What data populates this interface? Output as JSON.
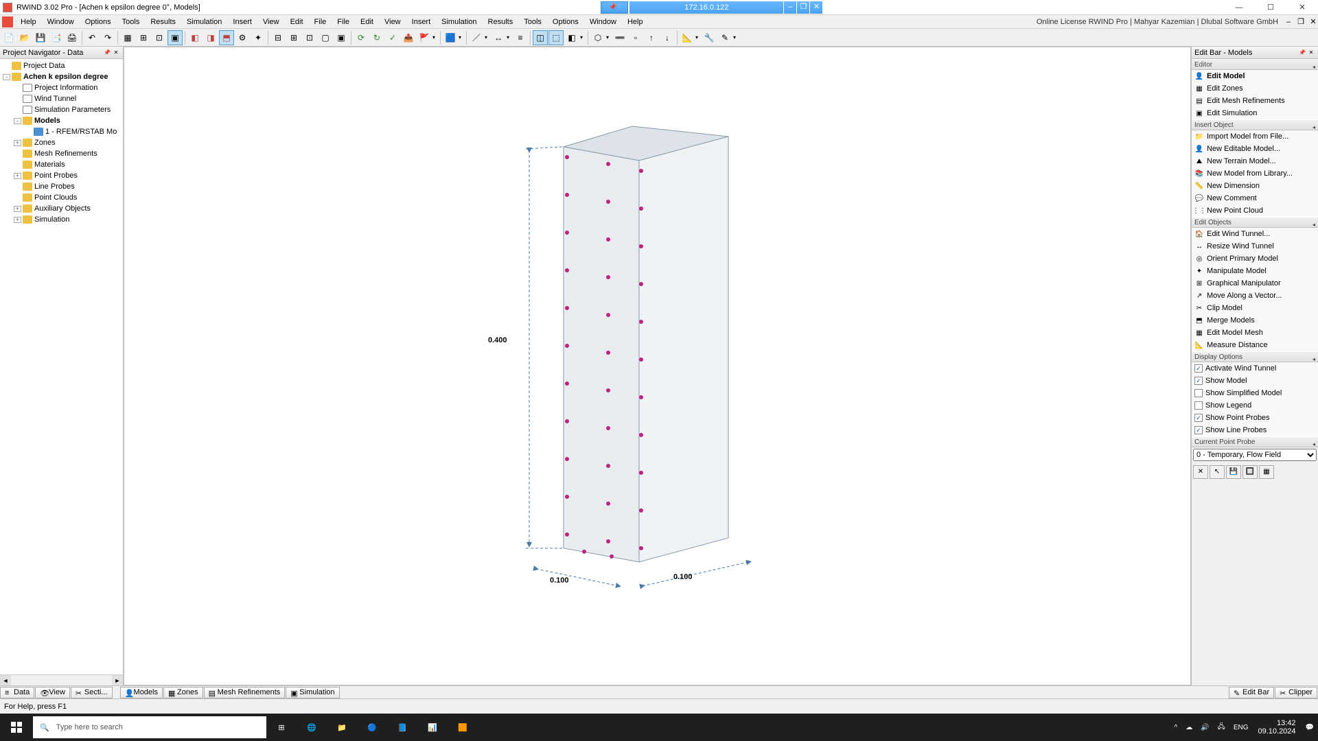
{
  "titlebar": {
    "title": "RWIND 3.02 Pro - [Achen  k epsilon degree 0°, Models]",
    "remote_ip": "172.16.0.122"
  },
  "menubar": {
    "items": [
      "File",
      "Edit",
      "View",
      "Insert",
      "Simulation",
      "Results",
      "Tools",
      "Options",
      "Window",
      "Help"
    ],
    "license": "Online License RWIND Pro | Mahyar Kazemian | Dlubal Software GmbH"
  },
  "leftpanel": {
    "header": "Project Navigator - Data",
    "tree": [
      {
        "indent": 0,
        "exp": "",
        "icon": "folder",
        "label": "Project Data"
      },
      {
        "indent": 0,
        "exp": "-",
        "icon": "folder",
        "label": "Achen  k epsilon degree",
        "bold": true
      },
      {
        "indent": 1,
        "exp": "",
        "icon": "doc",
        "label": "Project Information"
      },
      {
        "indent": 1,
        "exp": "",
        "icon": "doc",
        "label": "Wind Tunnel"
      },
      {
        "indent": 1,
        "exp": "",
        "icon": "doc",
        "label": "Simulation Parameters"
      },
      {
        "indent": 1,
        "exp": "-",
        "icon": "folder",
        "label": "Models",
        "bold": true
      },
      {
        "indent": 2,
        "exp": "",
        "icon": "blue",
        "label": "1 - RFEM/RSTAB Mo"
      },
      {
        "indent": 1,
        "exp": "+",
        "icon": "folder",
        "label": "Zones"
      },
      {
        "indent": 1,
        "exp": "",
        "icon": "folder",
        "label": "Mesh Refinements"
      },
      {
        "indent": 1,
        "exp": "",
        "icon": "folder",
        "label": "Materials"
      },
      {
        "indent": 1,
        "exp": "+",
        "icon": "folder",
        "label": "Point Probes"
      },
      {
        "indent": 1,
        "exp": "",
        "icon": "folder",
        "label": "Line Probes"
      },
      {
        "indent": 1,
        "exp": "",
        "icon": "folder",
        "label": "Point Clouds"
      },
      {
        "indent": 1,
        "exp": "+",
        "icon": "folder",
        "label": "Auxiliary Objects"
      },
      {
        "indent": 1,
        "exp": "+",
        "icon": "folder",
        "label": "Simulation"
      }
    ]
  },
  "rightpanel": {
    "header": "Edit Bar - Models",
    "sections": [
      {
        "title": "Editor",
        "items": [
          {
            "icon": "👤",
            "label": "Edit Model",
            "bold": true
          },
          {
            "icon": "▦",
            "label": "Edit Zones"
          },
          {
            "icon": "▤",
            "label": "Edit Mesh Refinements"
          },
          {
            "icon": "▣",
            "label": "Edit Simulation"
          }
        ]
      },
      {
        "title": "Insert Object",
        "items": [
          {
            "icon": "📁",
            "label": "Import Model from File..."
          },
          {
            "icon": "👤",
            "label": "New Editable Model..."
          },
          {
            "icon": "⛰",
            "label": "New Terrain Model..."
          },
          {
            "icon": "📚",
            "label": "New Model from Library..."
          },
          {
            "icon": "📏",
            "label": "New Dimension"
          },
          {
            "icon": "💬",
            "label": "New Comment"
          },
          {
            "icon": "⋮⋮",
            "label": "New Point Cloud"
          }
        ]
      },
      {
        "title": "Edit Objects",
        "items": [
          {
            "icon": "🏠",
            "label": "Edit Wind Tunnel..."
          },
          {
            "icon": "↔",
            "label": "Resize Wind Tunnel"
          },
          {
            "icon": "◎",
            "label": "Orient Primary Model"
          },
          {
            "icon": "✦",
            "label": "Manipulate Model"
          },
          {
            "icon": "⊞",
            "label": "Graphical Manipulator"
          },
          {
            "icon": "↗",
            "label": "Move Along a Vector..."
          },
          {
            "icon": "✂",
            "label": "Clip Model"
          },
          {
            "icon": "⬒",
            "label": "Merge Models"
          },
          {
            "icon": "▦",
            "label": "Edit Model Mesh"
          },
          {
            "icon": "📐",
            "label": "Measure Distance"
          }
        ]
      },
      {
        "title": "Display Options",
        "checkboxes": [
          {
            "checked": true,
            "label": "Activate Wind Tunnel"
          },
          {
            "checked": true,
            "label": "Show Model"
          },
          {
            "checked": false,
            "label": "Show Simplified Model"
          },
          {
            "checked": false,
            "label": "Show Legend"
          },
          {
            "checked": true,
            "label": "Show Point Probes"
          },
          {
            "checked": true,
            "label": "Show Line Probes"
          }
        ]
      },
      {
        "title": "Current Point Probe",
        "select": "0 - Temporary, Flow Field"
      }
    ]
  },
  "viewport": {
    "dims": {
      "height": "0.400",
      "width1": "0.100",
      "width2": "0.100"
    },
    "box_color": "#e8ecef",
    "edge_color": "#8899aa",
    "dim_color": "#4a7ba6",
    "probe_color": "#c02080"
  },
  "bottomtabs": {
    "left": [
      "Data",
      "View",
      "Secti..."
    ],
    "mid": [
      "Models",
      "Zones",
      "Mesh Refinements",
      "Simulation"
    ],
    "right": [
      "Edit Bar",
      "Clipper"
    ]
  },
  "status": {
    "text": "For Help, press F1"
  },
  "taskbar": {
    "search_placeholder": "Type here to search",
    "lang": "ENG",
    "time": "13:42",
    "date": "09.10.2024"
  }
}
